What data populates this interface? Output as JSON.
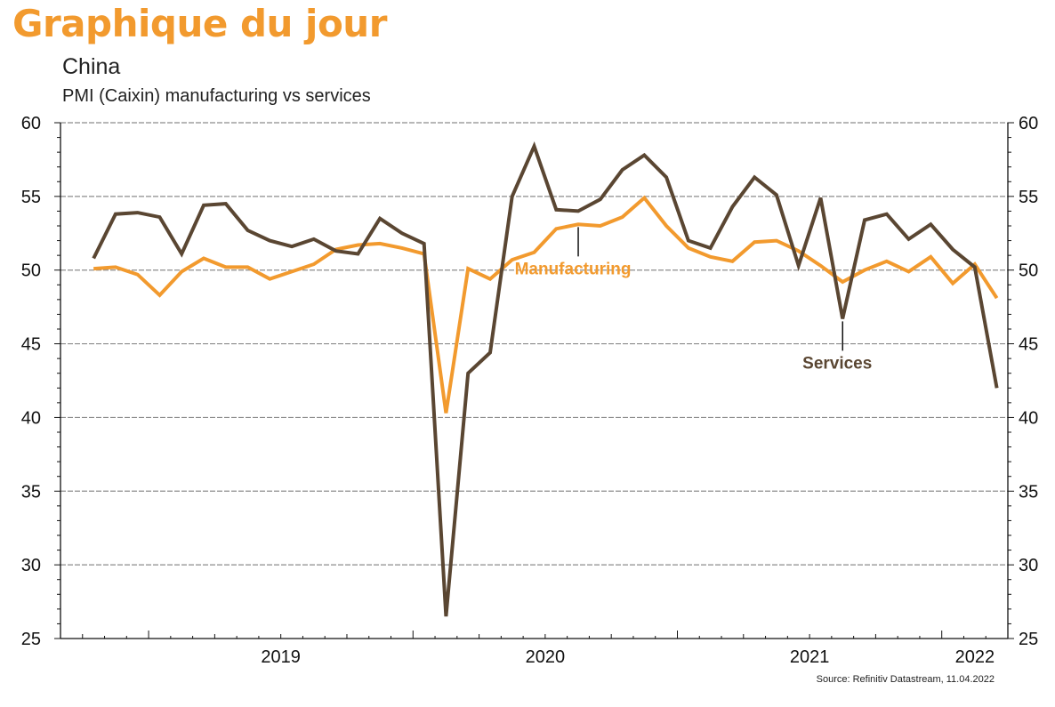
{
  "header": {
    "brand": "Graphique du jour",
    "title": "China",
    "subtitle": "PMI (Caixin) manufacturing vs services"
  },
  "source": "Source: Refinitiv Datastream, 11.04.2022",
  "colors": {
    "brand": "#f29a2e",
    "manufacturing": "#f29a2e",
    "services": "#5a4632",
    "grid": "#8c8c8c"
  },
  "chart_data": {
    "type": "line",
    "title": "PMI (Caixin) manufacturing vs services",
    "ylim": [
      25,
      60
    ],
    "yticks": [
      25,
      30,
      35,
      40,
      45,
      50,
      55,
      60
    ],
    "y_axes": "both sides",
    "grid": "horizontal, dashed",
    "x_start": "2018-09",
    "x_end": "2022-03",
    "x_labels": [
      "2019",
      "2020",
      "2021",
      "2022"
    ],
    "x": [
      "2018-10",
      "2018-11",
      "2018-12",
      "2019-01",
      "2019-02",
      "2019-03",
      "2019-04",
      "2019-05",
      "2019-06",
      "2019-07",
      "2019-08",
      "2019-09",
      "2019-10",
      "2019-11",
      "2019-12",
      "2020-01",
      "2020-02",
      "2020-03",
      "2020-04",
      "2020-05",
      "2020-06",
      "2020-07",
      "2020-08",
      "2020-09",
      "2020-10",
      "2020-11",
      "2020-12",
      "2021-01",
      "2021-02",
      "2021-03",
      "2021-04",
      "2021-05",
      "2021-06",
      "2021-07",
      "2021-08",
      "2021-09",
      "2021-10",
      "2021-11",
      "2021-12",
      "2022-01",
      "2022-02",
      "2022-03"
    ],
    "series": [
      {
        "name": "Manufacturing",
        "values": [
          50.1,
          50.2,
          49.7,
          48.3,
          49.9,
          50.8,
          50.2,
          50.2,
          49.4,
          49.9,
          50.4,
          51.4,
          51.7,
          51.8,
          51.5,
          51.1,
          40.3,
          50.1,
          49.4,
          50.7,
          51.2,
          52.8,
          53.1,
          53.0,
          53.6,
          54.9,
          53.0,
          51.5,
          50.9,
          50.6,
          51.9,
          52.0,
          51.3,
          50.3,
          49.2,
          50.0,
          50.6,
          49.9,
          50.9,
          49.1,
          50.4,
          48.1
        ]
      },
      {
        "name": "Services",
        "values": [
          50.8,
          53.8,
          53.9,
          53.6,
          51.1,
          54.4,
          54.5,
          52.7,
          52.0,
          51.6,
          52.1,
          51.3,
          51.1,
          53.5,
          52.5,
          51.8,
          26.5,
          43.0,
          44.4,
          55.0,
          58.4,
          54.1,
          54.0,
          54.8,
          56.8,
          57.8,
          56.3,
          52.0,
          51.5,
          54.3,
          56.3,
          55.1,
          50.3,
          54.9,
          46.7,
          53.4,
          53.8,
          52.1,
          53.1,
          51.4,
          50.2,
          42.0
        ]
      }
    ],
    "annotations": [
      {
        "text": "Manufacturing",
        "series": "Manufacturing",
        "at": "2020-08"
      },
      {
        "text": "Services",
        "series": "Services",
        "at": "2021-08"
      }
    ]
  }
}
